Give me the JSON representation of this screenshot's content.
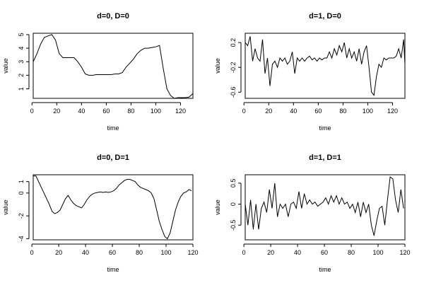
{
  "chart_data": [
    {
      "type": "line",
      "title": "d=0, D=0",
      "xlabel": "time",
      "ylabel": "value",
      "xlim": [
        1,
        130
      ],
      "ylim": [
        0.3,
        5.1
      ],
      "xticks": [
        0,
        20,
        40,
        60,
        80,
        100,
        120
      ],
      "yticks": [
        1,
        2,
        3,
        4,
        5
      ],
      "x": [
        1,
        4,
        7,
        10,
        13,
        16,
        19,
        22,
        25,
        28,
        31,
        34,
        37,
        40,
        43,
        46,
        49,
        52,
        55,
        58,
        61,
        64,
        67,
        70,
        73,
        76,
        79,
        82,
        85,
        88,
        91,
        94,
        97,
        100,
        103,
        106,
        109,
        112,
        115,
        118,
        121,
        124,
        127,
        130
      ],
      "y": [
        3.0,
        3.6,
        4.3,
        4.8,
        4.9,
        5.0,
        4.6,
        3.6,
        3.3,
        3.3,
        3.3,
        3.3,
        3.0,
        2.6,
        2.1,
        2.0,
        2.0,
        2.05,
        2.05,
        2.05,
        2.05,
        2.05,
        2.1,
        2.1,
        2.2,
        2.6,
        2.9,
        3.2,
        3.6,
        3.85,
        4.0,
        4.0,
        4.05,
        4.1,
        4.2,
        2.5,
        1.0,
        0.5,
        0.3,
        0.35,
        0.35,
        0.35,
        0.4,
        0.65
      ]
    },
    {
      "type": "line",
      "title": "d=1, D=0",
      "xlabel": "time",
      "ylabel": "value",
      "xlim": [
        1,
        130
      ],
      "ylim": [
        -0.7,
        0.35
      ],
      "xticks": [
        0,
        20,
        40,
        60,
        80,
        100,
        120
      ],
      "yticks": [
        -0.6,
        -0.2,
        0.2
      ],
      "x": [
        1,
        3,
        5,
        7,
        9,
        11,
        13,
        15,
        17,
        19,
        21,
        23,
        25,
        27,
        29,
        31,
        33,
        35,
        37,
        39,
        41,
        43,
        45,
        47,
        49,
        51,
        53,
        55,
        57,
        59,
        61,
        63,
        65,
        67,
        69,
        71,
        73,
        75,
        77,
        79,
        81,
        83,
        85,
        87,
        89,
        91,
        93,
        95,
        97,
        99,
        101,
        103,
        105,
        107,
        109,
        111,
        113,
        115,
        117,
        119,
        121,
        123,
        125,
        127,
        129,
        130
      ],
      "y": [
        0.2,
        0.15,
        0.3,
        -0.1,
        0.1,
        -0.05,
        -0.1,
        0.25,
        -0.3,
        -0.05,
        -0.5,
        -0.15,
        -0.1,
        -0.2,
        -0.05,
        -0.1,
        -0.05,
        -0.15,
        -0.1,
        0.05,
        -0.3,
        -0.05,
        -0.1,
        -0.05,
        -0.1,
        -0.05,
        -0.02,
        -0.08,
        -0.05,
        -0.1,
        -0.05,
        -0.08,
        -0.05,
        -0.05,
        0.05,
        -0.05,
        0.1,
        0.0,
        0.15,
        0.05,
        0.2,
        -0.05,
        0.1,
        -0.05,
        0.05,
        -0.1,
        0.1,
        -0.15,
        0.05,
        0.15,
        -0.2,
        -0.6,
        -0.65,
        -0.35,
        -0.15,
        -0.2,
        -0.05,
        -0.08,
        -0.05,
        -0.05,
        -0.05,
        -0.02,
        0.1,
        -0.05,
        0.25,
        -0.15
      ]
    },
    {
      "type": "line",
      "title": "d=0, D=1",
      "xlabel": "time",
      "ylabel": "value",
      "xlim": [
        1,
        120
      ],
      "ylim": [
        -4.1,
        1.6
      ],
      "xticks": [
        0,
        20,
        40,
        60,
        80,
        100,
        120
      ],
      "yticks": [
        -4,
        -2,
        0,
        1
      ],
      "x": [
        1,
        3,
        5,
        7,
        9,
        11,
        13,
        15,
        17,
        19,
        21,
        23,
        25,
        27,
        29,
        31,
        33,
        35,
        37,
        39,
        41,
        43,
        45,
        47,
        49,
        51,
        53,
        55,
        57,
        59,
        61,
        63,
        65,
        67,
        69,
        71,
        73,
        75,
        77,
        79,
        81,
        83,
        85,
        87,
        89,
        91,
        93,
        95,
        97,
        99,
        101,
        103,
        105,
        107,
        109,
        111,
        113,
        115,
        117,
        119
      ],
      "y": [
        1.5,
        1.5,
        1.0,
        0.5,
        0.0,
        -0.5,
        -1.0,
        -1.6,
        -1.8,
        -1.7,
        -1.5,
        -1.0,
        -0.5,
        -0.2,
        -0.6,
        -0.9,
        -1.1,
        -1.2,
        -1.3,
        -1.0,
        -0.6,
        -0.3,
        -0.1,
        0.0,
        0.05,
        0.1,
        0.05,
        0.1,
        0.05,
        0.1,
        0.2,
        0.4,
        0.7,
        0.9,
        1.1,
        1.2,
        1.2,
        1.1,
        1.0,
        0.7,
        0.5,
        0.4,
        0.3,
        0.2,
        0.0,
        -0.5,
        -1.5,
        -2.5,
        -3.2,
        -3.8,
        -4.0,
        -3.5,
        -2.5,
        -1.5,
        -0.8,
        -0.3,
        0.0,
        0.1,
        0.3,
        0.2
      ]
    },
    {
      "type": "line",
      "title": "d=1, D=1",
      "xlabel": "time",
      "ylabel": "value",
      "xlim": [
        1,
        120
      ],
      "ylim": [
        -0.85,
        0.7
      ],
      "xticks": [
        0,
        20,
        40,
        60,
        80,
        100,
        120
      ],
      "yticks": [
        -0.5,
        0.0,
        0.5
      ],
      "x": [
        1,
        3,
        5,
        7,
        9,
        11,
        13,
        15,
        17,
        19,
        21,
        23,
        25,
        27,
        29,
        31,
        33,
        35,
        37,
        39,
        41,
        43,
        45,
        47,
        49,
        51,
        53,
        55,
        57,
        59,
        61,
        63,
        65,
        67,
        69,
        71,
        73,
        75,
        77,
        79,
        81,
        83,
        85,
        87,
        89,
        91,
        93,
        95,
        97,
        99,
        101,
        103,
        105,
        107,
        109,
        111,
        113,
        115,
        117,
        119
      ],
      "y": [
        0.0,
        -0.5,
        0.1,
        -0.6,
        0.0,
        -0.6,
        -0.1,
        0.05,
        -0.2,
        0.35,
        -0.1,
        0.5,
        -0.3,
        0.0,
        -0.1,
        0.0,
        -0.3,
        0.0,
        0.05,
        -0.1,
        0.3,
        -0.1,
        0.25,
        0.0,
        0.1,
        0.0,
        0.05,
        -0.05,
        0.0,
        0.05,
        0.15,
        0.0,
        0.2,
        0.05,
        0.2,
        0.0,
        0.15,
        0.0,
        0.05,
        -0.1,
        0.0,
        -0.2,
        0.05,
        -0.3,
        0.05,
        -0.2,
        0.0,
        -0.5,
        -0.75,
        -0.4,
        -0.1,
        -0.05,
        -0.5,
        0.1,
        0.65,
        0.6,
        0.1,
        -0.2,
        0.35,
        -0.1
      ]
    }
  ]
}
